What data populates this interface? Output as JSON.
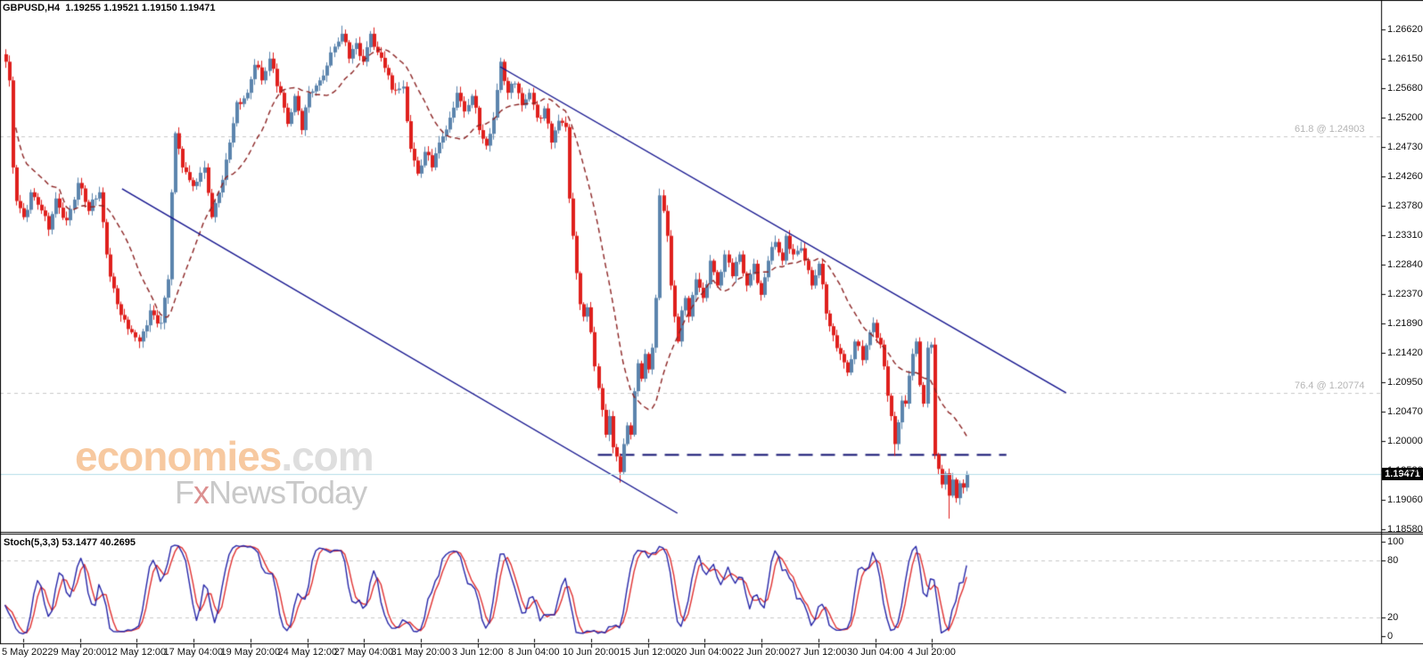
{
  "header": {
    "ohlc_line": "GBPUSD,H4  1.19255 1.19521 1.19150 1.19471",
    "symbol": "GBPUSD",
    "timeframe": "H4",
    "open": "1.19255",
    "high": "1.19521",
    "low": "1.19150",
    "close": "1.19471"
  },
  "watermark": {
    "brand": "economies",
    "brand_suffix": ".com",
    "tagline_f": "F",
    "tagline_x": "x",
    "tagline_rest": "NewsToday"
  },
  "price_scale": {
    "current": "1.19471",
    "ticks": [
      "1.26620",
      "1.26150",
      "1.25680",
      "1.25200",
      "1.24730",
      "1.24260",
      "1.23780",
      "1.23310",
      "1.22840",
      "1.22370",
      "1.21890",
      "1.21420",
      "1.20950",
      "1.20470",
      "1.20000",
      "1.19530",
      "1.19060",
      "1.18580"
    ]
  },
  "colors": {
    "bull": "#5b84ad",
    "bear": "#df1f1c",
    "ma": "#8b2323",
    "trendline": "#10108c",
    "support": "#0d0d6e",
    "bid_line": "#b5dde8",
    "fib_line": "#c8c8c8",
    "fib_text": "#b4b4b4",
    "stoch_main": "#2626a8",
    "stoch_signal": "#e03030",
    "axis_text": "#111111",
    "price_tag_bg": "#000000",
    "price_tag_fg": "#ffffff",
    "border": "#000000",
    "background": "#ffffff"
  },
  "chart_data": {
    "type": "candlestick",
    "instrument": "GBPUSD",
    "timeframe": "H4",
    "title": "GBPUSD,H4",
    "bars": 267,
    "y_axis_ticks": [
      1.2662,
      1.2615,
      1.2568,
      1.252,
      1.2473,
      1.2426,
      1.2378,
      1.2331,
      1.2284,
      1.2237,
      1.2189,
      1.2142,
      1.2095,
      1.2047,
      1.2,
      1.1953,
      1.1906,
      1.1858
    ],
    "x_axis_ticks": [
      "5 May 2022",
      "9 May 20:00",
      "12 May 12:00",
      "17 May 04:00",
      "19 May 20:00",
      "24 May 12:00",
      "27 May 04:00",
      "31 May 20:00",
      "3 Jun 12:00",
      "8 Jun 04:00",
      "10 Jun 20:00",
      "15 Jun 12:00",
      "20 Jun 04:00",
      "22 Jun 20:00",
      "27 Jun 12:00",
      "30 Jun 04:00",
      "4 Jul 20:00"
    ],
    "current_price": 1.19471,
    "price_anchors": [
      [
        0,
        1.261
      ],
      [
        1,
        1.258
      ],
      [
        2,
        1.244
      ],
      [
        3,
        1.2386
      ],
      [
        5,
        1.236
      ],
      [
        7,
        1.24
      ],
      [
        9,
        1.238
      ],
      [
        12,
        1.234
      ],
      [
        14,
        1.239
      ],
      [
        17,
        1.2355
      ],
      [
        20,
        1.2415
      ],
      [
        23,
        1.237
      ],
      [
        26,
        1.24
      ],
      [
        28,
        1.23
      ],
      [
        31,
        1.222
      ],
      [
        34,
        1.218
      ],
      [
        37,
        1.216
      ],
      [
        40,
        1.221
      ],
      [
        43,
        1.219
      ],
      [
        45,
        1.226
      ],
      [
        46,
        1.24
      ],
      [
        47,
        1.2495
      ],
      [
        49,
        1.244
      ],
      [
        52,
        1.241
      ],
      [
        55,
        1.244
      ],
      [
        57,
        1.236
      ],
      [
        60,
        1.242
      ],
      [
        62,
        1.248
      ],
      [
        64,
        1.2545
      ],
      [
        67,
        1.256
      ],
      [
        69,
        1.2605
      ],
      [
        71,
        1.258
      ],
      [
        73,
        1.2615
      ],
      [
        76,
        1.256
      ],
      [
        78,
        1.251
      ],
      [
        80,
        1.2555
      ],
      [
        82,
        1.25
      ],
      [
        84,
        1.256
      ],
      [
        87,
        1.258
      ],
      [
        90,
        1.2625
      ],
      [
        93,
        1.2655
      ],
      [
        95,
        1.2615
      ],
      [
        97,
        1.264
      ],
      [
        99,
        1.261
      ],
      [
        101,
        1.2655
      ],
      [
        103,
        1.2625
      ],
      [
        105,
        1.26
      ],
      [
        107,
        1.2565
      ],
      [
        110,
        1.257
      ],
      [
        112,
        1.247
      ],
      [
        114,
        1.243
      ],
      [
        116,
        1.2465
      ],
      [
        118,
        1.244
      ],
      [
        120,
        1.248
      ],
      [
        123,
        1.252
      ],
      [
        125,
        1.256
      ],
      [
        127,
        1.253
      ],
      [
        129,
        1.2555
      ],
      [
        131,
        1.25
      ],
      [
        133,
        1.2475
      ],
      [
        135,
        1.252
      ],
      [
        137,
        1.261
      ],
      [
        139,
        1.256
      ],
      [
        141,
        1.2575
      ],
      [
        143,
        1.254
      ],
      [
        145,
        1.256
      ],
      [
        147,
        1.252
      ],
      [
        149,
        1.2535
      ],
      [
        151,
        1.248
      ],
      [
        153,
        1.2515
      ],
      [
        155,
        1.2505
      ],
      [
        156,
        1.239
      ],
      [
        157,
        1.233
      ],
      [
        158,
        1.227
      ],
      [
        159,
        1.222
      ],
      [
        160,
        1.22
      ],
      [
        161,
        1.2215
      ],
      [
        162,
        1.2175
      ],
      [
        163,
        1.212
      ],
      [
        164,
        1.2085
      ],
      [
        165,
        1.205
      ],
      [
        166,
        1.201
      ],
      [
        167,
        1.204
      ],
      [
        168,
        1.199
      ],
      [
        169,
        1.1975
      ],
      [
        170,
        1.195
      ],
      [
        171,
        1.1995
      ],
      [
        172,
        1.2025
      ],
      [
        173,
        1.201
      ],
      [
        174,
        1.208
      ],
      [
        175,
        1.2125
      ],
      [
        176,
        1.21
      ],
      [
        177,
        1.214
      ],
      [
        178,
        1.2115
      ],
      [
        179,
        1.215
      ],
      [
        180,
        1.223
      ],
      [
        181,
        1.2395
      ],
      [
        182,
        1.237
      ],
      [
        183,
        1.233
      ],
      [
        184,
        1.225
      ],
      [
        185,
        1.22
      ],
      [
        186,
        1.216
      ],
      [
        187,
        1.221
      ],
      [
        188,
        1.223
      ],
      [
        189,
        1.22
      ],
      [
        191,
        1.226
      ],
      [
        193,
        1.223
      ],
      [
        195,
        1.229
      ],
      [
        197,
        1.225
      ],
      [
        199,
        1.23
      ],
      [
        201,
        1.2265
      ],
      [
        203,
        1.23
      ],
      [
        205,
        1.225
      ],
      [
        207,
        1.2285
      ],
      [
        209,
        1.2235
      ],
      [
        211,
        1.229
      ],
      [
        213,
        1.232
      ],
      [
        215,
        1.229
      ],
      [
        216,
        1.233
      ],
      [
        218,
        1.23
      ],
      [
        220,
        1.231
      ],
      [
        221,
        1.229
      ],
      [
        223,
        1.225
      ],
      [
        225,
        1.2285
      ],
      [
        227,
        1.2205
      ],
      [
        229,
        1.217
      ],
      [
        231,
        1.214
      ],
      [
        233,
        1.211
      ],
      [
        235,
        1.216
      ],
      [
        237,
        1.213
      ],
      [
        239,
        1.2175
      ],
      [
        240,
        1.219
      ],
      [
        242,
        1.2155
      ],
      [
        243,
        1.212
      ],
      [
        245,
        1.204
      ],
      [
        246,
        1.1995
      ],
      [
        247,
        1.203
      ],
      [
        248,
        1.2065
      ],
      [
        249,
        1.206
      ],
      [
        250,
        1.2105
      ],
      [
        251,
        1.214
      ],
      [
        252,
        1.216
      ],
      [
        253,
        1.209
      ],
      [
        254,
        1.206
      ],
      [
        255,
        1.215
      ],
      [
        256,
        1.2155
      ],
      [
        257,
        1.1978
      ],
      [
        258,
        1.1955
      ],
      [
        259,
        1.193
      ],
      [
        260,
        1.1948
      ],
      [
        261,
        1.1912
      ],
      [
        262,
        1.1938
      ],
      [
        263,
        1.1908
      ],
      [
        264,
        1.1932
      ],
      [
        265,
        1.1925
      ],
      [
        266,
        1.19471
      ]
    ],
    "wick_overrides": {
      "37": {
        "low": 1.2155
      },
      "93": {
        "high": 1.2668
      },
      "170": {
        "low": 1.1933
      },
      "181": {
        "high": 1.2406
      },
      "246": {
        "low": 1.1976
      },
      "261": {
        "low": 1.1875
      }
    },
    "wiggle_amp": 0.0009,
    "ma": {
      "period": 16,
      "style": "dashed"
    },
    "fib_levels": [
      {
        "label": "61.8 @ 1.24903",
        "price": 1.24903
      },
      {
        "label": "76.4 @ 1.20774",
        "price": 1.20774
      }
    ],
    "trendlines": [
      {
        "from_bar": 32.4,
        "from_price": 1.24055,
        "to_bar": 186.0,
        "to_price": 1.18838
      },
      {
        "from_bar": 137.0,
        "from_price": 1.26018,
        "to_bar": 293.5,
        "to_price": 1.20774
      }
    ],
    "support_line": {
      "price": 1.1978,
      "from_bar": 164,
      "to_bar": 277
    },
    "stoch": {
      "label": "Stoch(5,3,3) 53.1477 40.2695",
      "name": "Stoch(5,3,3)",
      "main_value": "53.1477",
      "signal_value": "40.2695",
      "period_k": 5,
      "period_d": 3,
      "slowing": 3,
      "scale_labels": [
        "100",
        "80",
        "20",
        "0"
      ],
      "scale_values": [
        100,
        80,
        20,
        0
      ],
      "dashed_levels": [
        80,
        20
      ],
      "range": [
        0,
        100
      ]
    }
  }
}
